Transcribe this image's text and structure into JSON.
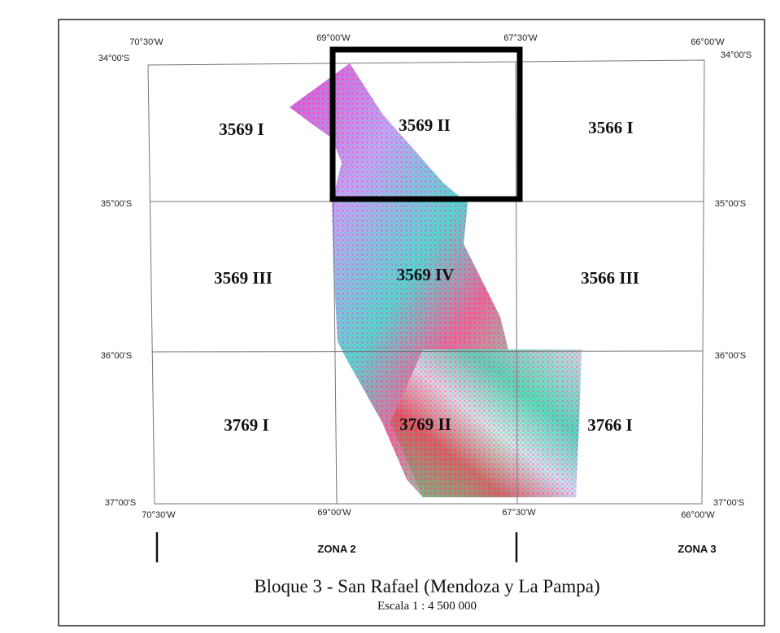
{
  "map": {
    "top_longitudes": [
      "70°30'W",
      "69°00'W",
      "67°30'W",
      "66°00'W"
    ],
    "bottom_longitudes": [
      "70°30'W",
      "69°00'W",
      "67°30'W",
      "66°00'W"
    ],
    "left_latitudes": [
      "34°00'S",
      "35°00'S",
      "36°00'S",
      "37°00'S"
    ],
    "right_latitudes": [
      "34°00'S",
      "35°00'S",
      "36°00'S",
      "37°00'S"
    ],
    "sheets": [
      "3569 I",
      "3569 II",
      "3566 I",
      "3569 III",
      "3569 IV",
      "3566 III",
      "3769 I",
      "3769 II",
      "3766 I"
    ],
    "zones": [
      "ZONA 2",
      "ZONA 3"
    ],
    "title": "Bloque 3 - San Rafael (Mendoza y La Pampa)",
    "scale": "Escala 1 : 4 500 000"
  }
}
